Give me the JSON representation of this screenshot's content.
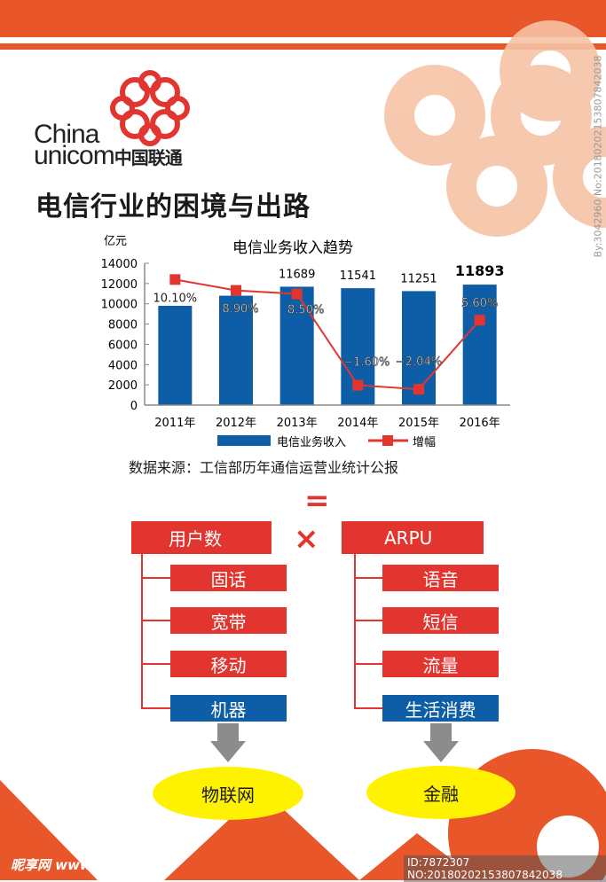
{
  "header": {
    "logo_en_line1": "China",
    "logo_en_line2": "unicom",
    "logo_cn": "中国联通",
    "title": "电信行业的困境与出路"
  },
  "colors": {
    "brand_orange": "#e8562a",
    "bar_blue": "#0e5ea7",
    "line_red": "#e3352f",
    "box_red": "#e3352f",
    "ellipse_yellow": "#fff200"
  },
  "chart_data": {
    "type": "bar+line",
    "title": "电信业务收入趋势",
    "ylabel": "亿元",
    "ylim": [
      0,
      14000
    ],
    "yticks": [
      0,
      2000,
      4000,
      6000,
      8000,
      10000,
      12000,
      14000
    ],
    "categories": [
      "2011年",
      "2012年",
      "2013年",
      "2014年",
      "2015年",
      "2016年"
    ],
    "series": [
      {
        "name": "电信业务收入",
        "type": "bar",
        "values": [
          9800,
          10800,
          11689,
          11541,
          11251,
          11893
        ],
        "labels": [
          "",
          "",
          "11689",
          "11541",
          "11251",
          "11893"
        ]
      },
      {
        "name": "增幅",
        "type": "line",
        "values": [
          10.1,
          8.9,
          8.5,
          -1.6,
          -2.04,
          5.6
        ],
        "labels": [
          "10.10%",
          "8.90%",
          "8.50%",
          "−1.60%",
          "−2.04%",
          "5.60%"
        ],
        "y2lim": [
          -3.8,
          11.9
        ]
      }
    ],
    "legend": "bottom",
    "grid": false
  },
  "source": "数据来源：工信部历年通信运营业统计公报",
  "diagram": {
    "equals": "=",
    "times": "×",
    "left": {
      "head": "用户数",
      "items": [
        "固话",
        "宽带",
        "移动"
      ],
      "highlight": "机器",
      "result": "物联网"
    },
    "right": {
      "head": "ARPU",
      "items": [
        "语音",
        "短信",
        "流量"
      ],
      "highlight": "生活消费",
      "result": "金融"
    }
  },
  "watermark": {
    "site": "昵享网 www.nipic.cn",
    "id": "ID:7872307 NO:20180202153807842038",
    "side": "By:3042960 No:20180202153807842038"
  }
}
